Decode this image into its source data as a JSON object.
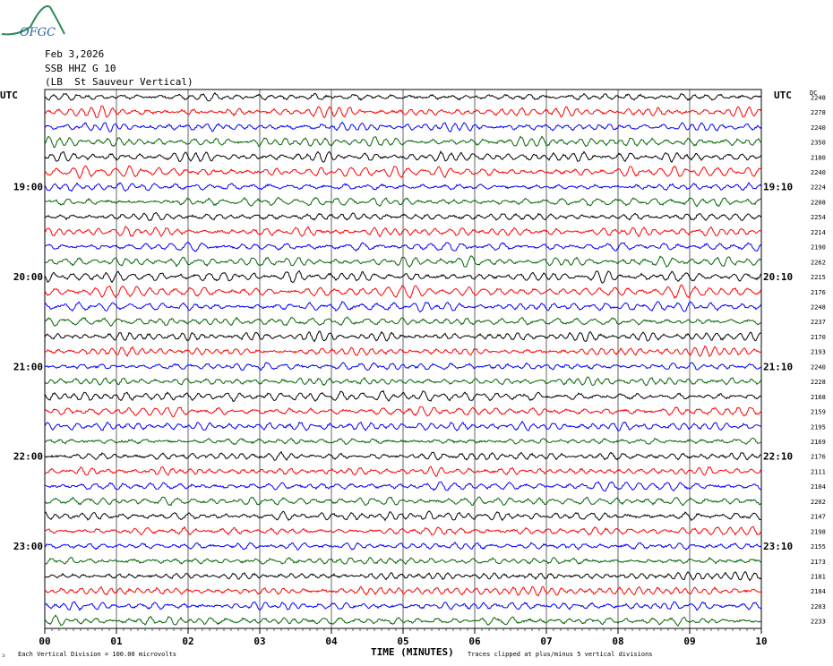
{
  "logo_text": "OFGC",
  "header": {
    "date": "Feb 3,2026",
    "station": "SSB HHZ G 10",
    "site": "(LB  St Sauveur Vertical)"
  },
  "labels": {
    "utc_left": "UTC",
    "utc_right": "UTC",
    "dc": "DC",
    "x_title": "TIME (MINUTES)",
    "scale_note": "Each Vertical Division =  100.00 microvolts",
    "clip_note": "Traces clipped at plus/minus 5 vertical divisions",
    "corner_mark": "ↄ"
  },
  "chart_data": {
    "type": "line",
    "title": "",
    "xlabel": "TIME (MINUTES)",
    "xlim": [
      0,
      10
    ],
    "x_ticks": [
      "00",
      "01",
      "02",
      "03",
      "04",
      "05",
      "06",
      "07",
      "08",
      "09",
      "10"
    ],
    "colors": [
      "#000000",
      "#ff0000",
      "#0000ff",
      "#006400"
    ],
    "left_time_labels": [
      {
        "row": 6,
        "label": "19:00"
      },
      {
        "row": 12,
        "label": "20:00"
      },
      {
        "row": 18,
        "label": "21:00"
      },
      {
        "row": 24,
        "label": "22:00"
      },
      {
        "row": 30,
        "label": "23:00"
      }
    ],
    "right_time_labels": [
      {
        "row": 6,
        "label": "19:10"
      },
      {
        "row": 12,
        "label": "20:10"
      },
      {
        "row": 18,
        "label": "21:10"
      },
      {
        "row": 24,
        "label": "22:10"
      },
      {
        "row": 30,
        "label": "23:10"
      }
    ],
    "dc_offsets": [
      2248,
      2278,
      2240,
      2350,
      2180,
      2240,
      2224,
      2208,
      2254,
      2214,
      2190,
      2262,
      2215,
      2176,
      2248,
      2237,
      2170,
      2193,
      2240,
      2228,
      2168,
      2159,
      2195,
      2169,
      2176,
      2111,
      2104,
      2202,
      2147,
      2198,
      2155,
      2173,
      2181,
      2184,
      2203,
      2233
    ]
  }
}
